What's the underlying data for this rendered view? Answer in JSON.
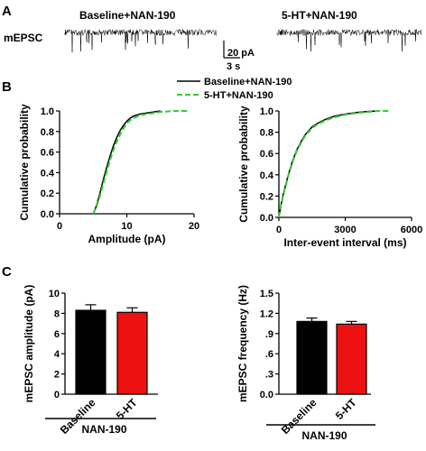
{
  "panels": {
    "a": {
      "letter": "A",
      "row_label": "mEPSC",
      "trace_left_title": "Baseline+NAN-190",
      "trace_right_title": "5-HT+NAN-190",
      "scale_time": "3 s",
      "scale_amp": "20 pA"
    },
    "b": {
      "letter": "B"
    },
    "c": {
      "letter": "C"
    }
  },
  "colors": {
    "baseline": "#000000",
    "treatment": "#33cc33",
    "bar_baseline": "#000000",
    "bar_treatment": "#ee1111"
  },
  "chart_data": [
    {
      "type": "line",
      "panel": "B-left",
      "xlabel": "Amplitude (pA)",
      "ylabel": "Cumulative probability",
      "xlim": [
        0,
        20
      ],
      "ylim": [
        0,
        1.0
      ],
      "xticks": [
        "0",
        "10",
        "20"
      ],
      "yticks": [
        "0.0",
        "0.2",
        "0.4",
        "0.6",
        "0.8",
        "1.0"
      ],
      "legend_position": "top-right",
      "series": [
        {
          "name": "Baseline+NAN-190",
          "style": "solid",
          "x": [
            5.0,
            5.5,
            6.0,
            6.5,
            7.0,
            7.5,
            8.0,
            8.5,
            9.0,
            9.5,
            10.0,
            10.5,
            11.0,
            12.0,
            13.0,
            14.0,
            15.0
          ],
          "y": [
            0.0,
            0.08,
            0.2,
            0.33,
            0.45,
            0.56,
            0.66,
            0.74,
            0.81,
            0.86,
            0.9,
            0.93,
            0.95,
            0.97,
            0.98,
            0.99,
            1.0
          ]
        },
        {
          "name": "5-HT+NAN-190",
          "style": "dashed",
          "x": [
            5.0,
            5.5,
            6.0,
            6.5,
            7.0,
            7.5,
            8.0,
            8.5,
            9.0,
            9.5,
            10.0,
            10.5,
            11.0,
            12.0,
            13.0,
            14.0,
            15.0,
            17.0,
            19.0
          ],
          "y": [
            0.0,
            0.07,
            0.17,
            0.29,
            0.41,
            0.52,
            0.62,
            0.7,
            0.77,
            0.83,
            0.88,
            0.91,
            0.93,
            0.96,
            0.97,
            0.98,
            0.99,
            1.0,
            1.0
          ]
        }
      ]
    },
    {
      "type": "line",
      "panel": "B-right",
      "xlabel": "Inter-event interval (ms)",
      "ylabel": "Cumulative probability",
      "xlim": [
        0,
        6000
      ],
      "ylim": [
        0,
        1.0
      ],
      "xticks": [
        "0",
        "3000",
        "6000"
      ],
      "yticks": [
        "0.0",
        "0.2",
        "0.4",
        "0.6",
        "0.8",
        "1.0"
      ],
      "series": [
        {
          "name": "Baseline+NAN-190",
          "style": "solid",
          "x": [
            0,
            100,
            200,
            400,
            600,
            800,
            1000,
            1200,
            1500,
            1800,
            2100,
            2500,
            3000,
            3500,
            4000,
            4500
          ],
          "y": [
            0.0,
            0.12,
            0.22,
            0.38,
            0.52,
            0.63,
            0.71,
            0.78,
            0.85,
            0.89,
            0.92,
            0.95,
            0.97,
            0.985,
            0.995,
            1.0
          ]
        },
        {
          "name": "5-HT+NAN-190",
          "style": "dashed",
          "x": [
            0,
            100,
            200,
            400,
            600,
            800,
            1000,
            1200,
            1500,
            1800,
            2100,
            2500,
            3000,
            3500,
            4000,
            4500,
            5000
          ],
          "y": [
            0.0,
            0.11,
            0.21,
            0.37,
            0.51,
            0.62,
            0.7,
            0.77,
            0.84,
            0.88,
            0.91,
            0.94,
            0.965,
            0.98,
            0.99,
            1.0,
            1.0
          ]
        }
      ]
    },
    {
      "type": "bar",
      "panel": "C-left",
      "ylabel": "mEPSC amplitude (pA)",
      "ylim": [
        0,
        10
      ],
      "yticks": [
        "0",
        "2",
        "4",
        "6",
        "8",
        "10"
      ],
      "categories": [
        "Baseline",
        "5-HT"
      ],
      "values": [
        8.3,
        8.1
      ],
      "errors": [
        0.55,
        0.45
      ],
      "group_label": "NAN-190"
    },
    {
      "type": "bar",
      "panel": "C-right",
      "ylabel": "mEPSC frequency (Hz)",
      "ylim": [
        0,
        1.5
      ],
      "yticks": [
        "0.0",
        ".3",
        ".6",
        ".9",
        "1.2",
        "1.5"
      ],
      "categories": [
        "Baseline",
        "5-HT"
      ],
      "values": [
        1.08,
        1.04
      ],
      "errors": [
        0.05,
        0.04
      ],
      "group_label": "NAN-190"
    }
  ]
}
